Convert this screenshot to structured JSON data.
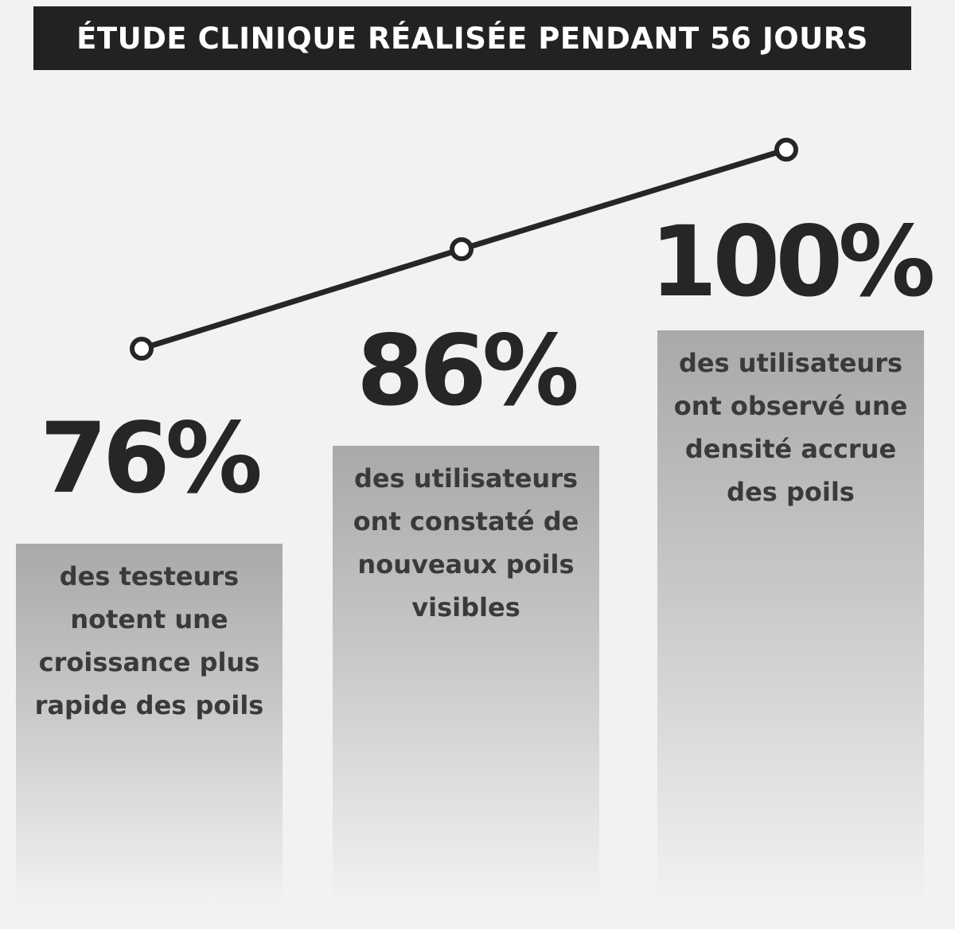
{
  "header": {
    "title": "ÉTUDE CLINIQUE RÉALISÉE PENDANT 56 JOURS"
  },
  "stats": [
    {
      "percent": "76%",
      "description": [
        "des testeurs",
        "notent une",
        "croissance plus",
        "rapide des poils"
      ]
    },
    {
      "percent": "86%",
      "description": [
        "des utilisateurs",
        "ont constaté de",
        "nouveaux poils",
        "visibles"
      ]
    },
    {
      "percent": "100%",
      "description": [
        "des utilisateurs",
        "ont observé une",
        "densité accrue",
        "des poils"
      ]
    }
  ]
}
